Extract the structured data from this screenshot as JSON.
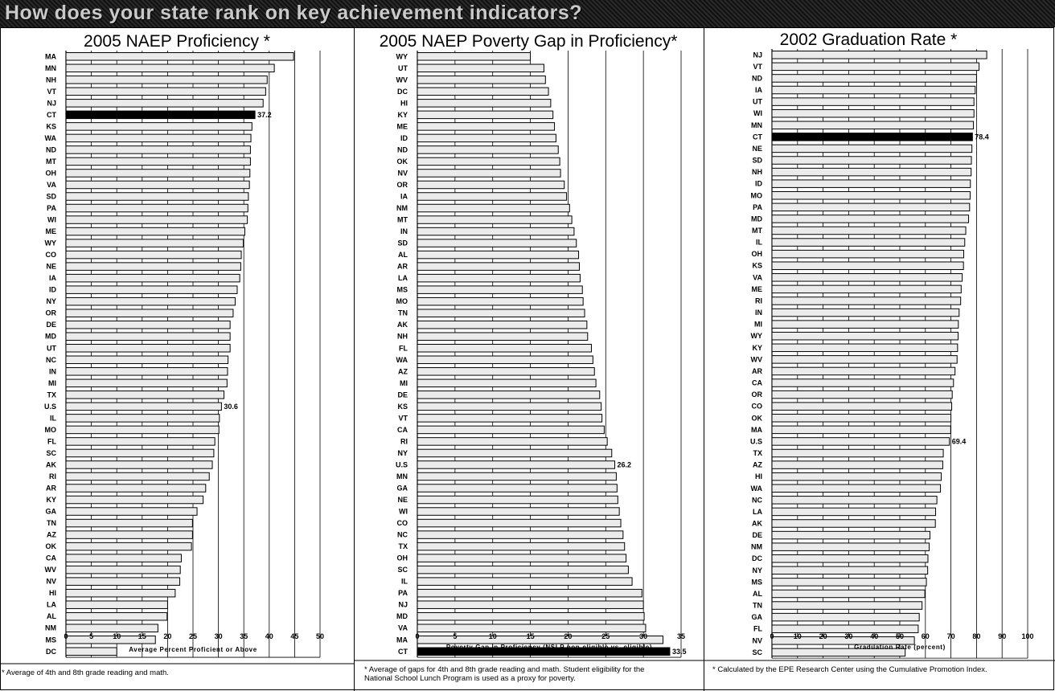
{
  "header": {
    "title": "How does your state rank on key achievement indicators?"
  },
  "colors": {
    "bar_fill": "#ebebeb",
    "bar_stroke": "#000000",
    "highlight": "#000000",
    "grid": "#000000"
  },
  "chart_data": [
    {
      "type": "bar",
      "orientation": "horizontal",
      "title": "2005 NAEP Proficiency *",
      "xlabel": "Average Percent Proficient or Above",
      "ylabel": "",
      "xlim": [
        0,
        50
      ],
      "xticks": [
        0,
        5,
        10,
        15,
        20,
        25,
        30,
        35,
        40,
        45,
        50
      ],
      "grid": true,
      "categories": [
        "MA",
        "MN",
        "NH",
        "VT",
        "NJ",
        "CT",
        "KS",
        "WA",
        "ND",
        "MT",
        "OH",
        "VA",
        "SD",
        "PA",
        "WI",
        "ME",
        "WY",
        "CO",
        "NE",
        "IA",
        "ID",
        "NY",
        "OR",
        "DE",
        "MD",
        "UT",
        "NC",
        "IN",
        "MI",
        "TX",
        "U.S",
        "IL",
        "MO",
        "FL",
        "SC",
        "AK",
        "RI",
        "AR",
        "KY",
        "GA",
        "TN",
        "AZ",
        "OK",
        "CA",
        "WV",
        "NV",
        "HI",
        "LA",
        "AL",
        "NM",
        "MS",
        "DC"
      ],
      "values": [
        44.8,
        41.0,
        39.6,
        39.3,
        38.8,
        37.2,
        36.6,
        36.4,
        36.3,
        36.3,
        36.2,
        36.1,
        35.9,
        35.8,
        35.7,
        35.2,
        34.9,
        34.5,
        34.4,
        34.2,
        33.7,
        33.3,
        32.9,
        32.3,
        32.3,
        32.3,
        31.9,
        31.8,
        31.7,
        31.1,
        30.6,
        30.2,
        30.1,
        29.3,
        29.1,
        28.8,
        28.2,
        27.5,
        27.0,
        25.8,
        24.9,
        24.9,
        24.7,
        22.7,
        22.5,
        22.4,
        21.5,
        20.0,
        19.9,
        18.1,
        17.6,
        10.0
      ],
      "highlight": [
        "CT"
      ],
      "data_labels": {
        "CT": "37.2",
        "U.S": "30.6"
      },
      "footnote": "* Average of 4th and 8th grade reading and math."
    },
    {
      "type": "bar",
      "orientation": "horizontal",
      "title": "2005 NAEP Poverty Gap in Proficiency*",
      "xlabel": "Poverty Gap in Proficiency (NSLP non-eligible vs. eligible)",
      "ylabel": "",
      "xlim": [
        0,
        35
      ],
      "xticks": [
        0,
        5,
        10,
        15,
        20,
        25,
        30,
        35
      ],
      "grid": true,
      "categories": [
        "WY",
        "UT",
        "WV",
        "DC",
        "HI",
        "KY",
        "ME",
        "ID",
        "ND",
        "OK",
        "NV",
        "OR",
        "IA",
        "NM",
        "MT",
        "IN",
        "SD",
        "AL",
        "AR",
        "LA",
        "MS",
        "MO",
        "TN",
        "AK",
        "NH",
        "FL",
        "WA",
        "AZ",
        "MI",
        "DE",
        "KS",
        "VT",
        "CA",
        "RI",
        "NY",
        "U.S",
        "MN",
        "GA",
        "NE",
        "WI",
        "CO",
        "NC",
        "TX",
        "OH",
        "SC",
        "IL",
        "PA",
        "NJ",
        "MD",
        "VA",
        "MA",
        "CT"
      ],
      "values": [
        15.0,
        16.8,
        17.0,
        17.4,
        17.7,
        18.0,
        18.2,
        18.4,
        18.7,
        18.9,
        19.0,
        19.5,
        19.8,
        20.2,
        20.5,
        20.8,
        21.1,
        21.4,
        21.5,
        21.6,
        21.9,
        22.0,
        22.2,
        22.5,
        22.6,
        23.1,
        23.3,
        23.5,
        23.7,
        24.2,
        24.4,
        24.5,
        24.8,
        25.2,
        25.8,
        26.2,
        26.4,
        26.5,
        26.6,
        26.8,
        27.0,
        27.3,
        27.5,
        27.7,
        28.0,
        28.5,
        29.8,
        30.0,
        30.1,
        30.3,
        32.6,
        33.5
      ],
      "highlight": [
        "CT"
      ],
      "data_labels": {
        "U.S": "26.2",
        "CT": "33.5"
      },
      "footnote": "* Average of gaps for 4th and 8th grade reading and math.  Student eligibility for the National School Lunch Program is used as a proxy for poverty."
    },
    {
      "type": "bar",
      "orientation": "horizontal",
      "title": "2002 Graduation Rate *",
      "xlabel": "Graduation Rate (percent)",
      "ylabel": "",
      "xlim": [
        0,
        100
      ],
      "xticks": [
        0,
        10,
        20,
        30,
        40,
        50,
        60,
        70,
        80,
        90,
        100
      ],
      "grid": true,
      "categories": [
        "NJ",
        "VT",
        "ND",
        "IA",
        "UT",
        "WI",
        "MN",
        "CT",
        "NE",
        "SD",
        "NH",
        "ID",
        "MO",
        "PA",
        "MD",
        "MT",
        "IL",
        "OH",
        "KS",
        "VA",
        "ME",
        "RI",
        "IN",
        "MI",
        "WY",
        "KY",
        "WV",
        "AR",
        "CA",
        "OR",
        "CO",
        "OK",
        "MA",
        "U.S",
        "TX",
        "AZ",
        "HI",
        "WA",
        "NC",
        "LA",
        "AK",
        "DE",
        "NM",
        "DC",
        "NY",
        "MS",
        "AL",
        "TN",
        "GA",
        "FL",
        "NV",
        "SC"
      ],
      "values": [
        84.0,
        81.0,
        80.0,
        79.5,
        79.0,
        79.0,
        78.8,
        78.4,
        78.2,
        78.0,
        77.9,
        77.6,
        77.5,
        77.3,
        76.9,
        75.8,
        75.4,
        75.0,
        74.9,
        74.4,
        74.0,
        73.8,
        73.2,
        72.9,
        72.8,
        72.6,
        72.4,
        71.6,
        71.0,
        70.5,
        70.3,
        70.0,
        69.9,
        69.4,
        67.0,
        66.8,
        66.2,
        65.9,
        64.5,
        64.0,
        63.9,
        61.8,
        61.5,
        61.0,
        60.9,
        60.4,
        59.8,
        58.7,
        57.6,
        57.2,
        55.7,
        52.1
      ],
      "highlight": [
        "CT"
      ],
      "data_labels": {
        "CT": "78.4",
        "U.S": "69.4"
      },
      "footnote": "* Calculated by the EPE Research Center using the Cumulative Promotion Index."
    }
  ]
}
